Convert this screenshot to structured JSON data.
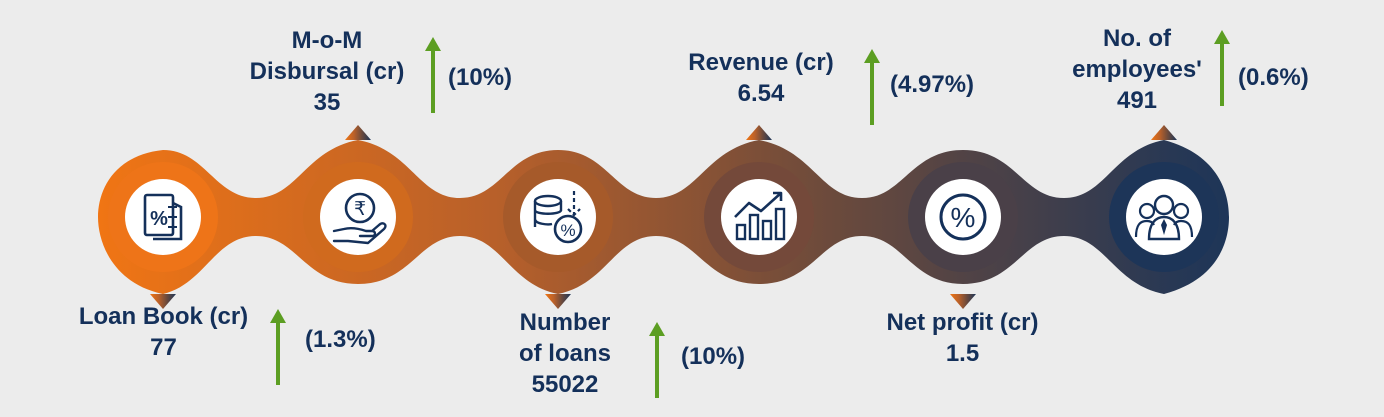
{
  "colors": {
    "text": "#14305a",
    "arrow": "#5c9e22",
    "node": [
      "#ee7418",
      "#d06a1e",
      "#a65a2a",
      "#74493a",
      "#4a4048",
      "#1d3558"
    ]
  },
  "metrics": [
    {
      "icon": "percent-document-icon",
      "lines": [
        "Loan Book (cr)",
        "77"
      ],
      "change": "(1.3%)",
      "position": "below"
    },
    {
      "icon": "rupee-hand-icon",
      "lines": [
        "M-o-M",
        "Disbursal (cr)",
        "35"
      ],
      "change": "(10%)",
      "position": "above"
    },
    {
      "icon": "coins-percent-icon",
      "lines": [
        "Number",
        "of loans",
        "55022"
      ],
      "change": "(10%)",
      "position": "below"
    },
    {
      "icon": "growth-chart-icon",
      "lines": [
        "Revenue (cr)",
        "6.54"
      ],
      "change": "(4.97%)",
      "position": "above"
    },
    {
      "icon": "percent-circle-icon",
      "lines": [
        "Net profit (cr)",
        "1.5"
      ],
      "change": "",
      "position": "below"
    },
    {
      "icon": "employees-group-icon",
      "lines": [
        "No. of",
        "employees'",
        "491"
      ],
      "change": "(0.6%)",
      "position": "above"
    }
  ]
}
